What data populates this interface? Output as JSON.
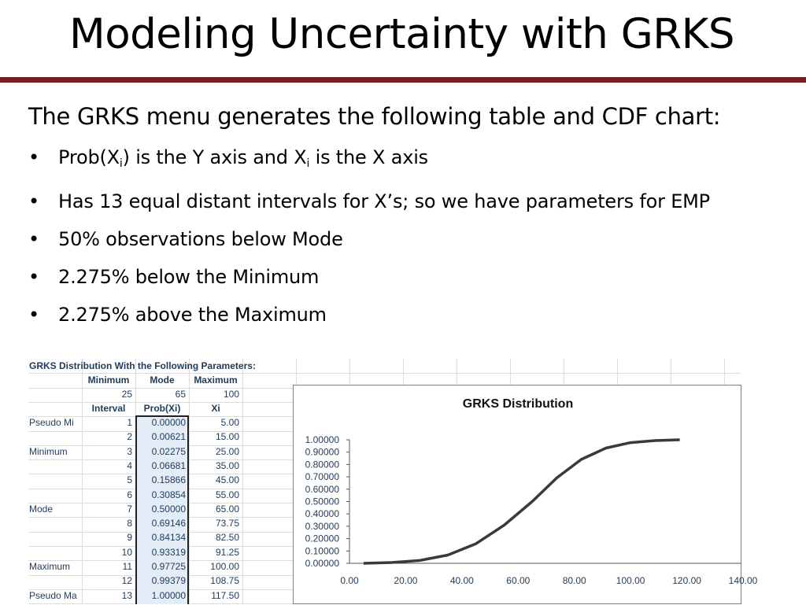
{
  "slide": {
    "title": "Modeling Uncertainty with GRKS",
    "intro": "The GRKS menu generates the following table and CDF chart:",
    "bullet_marker": "•",
    "bullets": {
      "b1": {
        "a": "Prob(X",
        "sub1": "i",
        "b": ") is the Y axis and X",
        "sub2": "i",
        "c": " is the X axis"
      },
      "b2": "Has 13 equal distant intervals for X’s; so we have parameters for EMP",
      "b3": "50% observations below Mode",
      "b4": "2.275% below the Minimum",
      "b5": "2.275% above the Maximum"
    }
  },
  "sheet": {
    "heading": "GRKS Distribution With the Following Parameters:",
    "param_headers": [
      "Minimum",
      "Mode",
      "Maximum"
    ],
    "param_values": [
      "25",
      "65",
      "100"
    ],
    "col_headers": [
      "Interval",
      "Prob(Xi)",
      "Xi"
    ],
    "rows": [
      {
        "label": "Pseudo Mi",
        "interval": "1",
        "prob": "0.00000",
        "xi": "5.00"
      },
      {
        "label": "",
        "interval": "2",
        "prob": "0.00621",
        "xi": "15.00"
      },
      {
        "label": "Minimum",
        "interval": "3",
        "prob": "0.02275",
        "xi": "25.00"
      },
      {
        "label": "",
        "interval": "4",
        "prob": "0.06681",
        "xi": "35.00"
      },
      {
        "label": "",
        "interval": "5",
        "prob": "0.15866",
        "xi": "45.00"
      },
      {
        "label": "",
        "interval": "6",
        "prob": "0.30854",
        "xi": "55.00"
      },
      {
        "label": "Mode",
        "interval": "7",
        "prob": "0.50000",
        "xi": "65.00"
      },
      {
        "label": "",
        "interval": "8",
        "prob": "0.69146",
        "xi": "73.75"
      },
      {
        "label": "",
        "interval": "9",
        "prob": "0.84134",
        "xi": "82.50"
      },
      {
        "label": "",
        "interval": "10",
        "prob": "0.93319",
        "xi": "91.25"
      },
      {
        "label": "Maximum",
        "interval": "11",
        "prob": "0.97725",
        "xi": "100.00"
      },
      {
        "label": "",
        "interval": "12",
        "prob": "0.99379",
        "xi": "108.75"
      },
      {
        "label": "Pseudo Ma",
        "interval": "13",
        "prob": "1.00000",
        "xi": "117.50"
      }
    ]
  },
  "chart_data": {
    "type": "line",
    "title": "GRKS Distribution",
    "xlabel": "",
    "ylabel": "",
    "xlim": [
      0,
      140
    ],
    "ylim": [
      0,
      1
    ],
    "x_ticks": [
      "0.00",
      "20.00",
      "40.00",
      "60.00",
      "80.00",
      "100.00",
      "120.00",
      "140.00"
    ],
    "y_ticks": [
      "0.00000",
      "0.10000",
      "0.20000",
      "0.30000",
      "0.40000",
      "0.50000",
      "0.60000",
      "0.70000",
      "0.80000",
      "0.90000",
      "1.00000"
    ],
    "grid": false,
    "legend": "none",
    "line_color": "#3a3a3a",
    "series": [
      {
        "x": [
          5,
          15,
          25,
          35,
          45,
          55,
          65,
          73.75,
          82.5,
          91.25,
          100,
          108.75,
          117.5
        ],
        "y": [
          0,
          0.00621,
          0.02275,
          0.06681,
          0.15866,
          0.30854,
          0.5,
          0.69146,
          0.84134,
          0.93319,
          0.97725,
          0.99379,
          1
        ]
      }
    ]
  }
}
